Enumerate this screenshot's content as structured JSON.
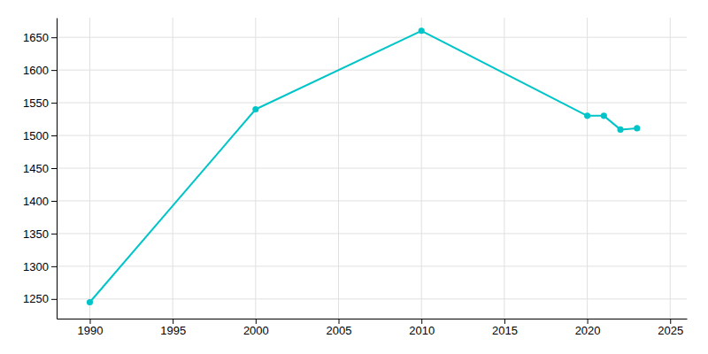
{
  "chart_data": {
    "type": "line",
    "x": [
      1990,
      2000,
      2010,
      2020,
      2021,
      2022,
      2023
    ],
    "values": [
      1245,
      1540,
      1660,
      1530,
      1530,
      1509,
      1511
    ],
    "color": "#00C5C8",
    "marker": "circle",
    "xlim": [
      1988,
      2026
    ],
    "ylim": [
      1220,
      1680
    ],
    "xticks": [
      1990,
      1995,
      2000,
      2005,
      2010,
      2015,
      2020,
      2025
    ],
    "yticks": [
      1250,
      1300,
      1350,
      1400,
      1450,
      1500,
      1550,
      1600,
      1650
    ],
    "grid": true
  }
}
